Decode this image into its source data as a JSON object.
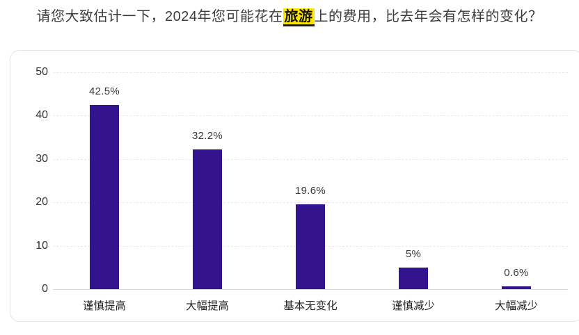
{
  "title": {
    "prefix": "请您大致估计一下，2024年您可能花在",
    "highlight": "旅游",
    "suffix": "上的费用，比去年会有怎样的变化？"
  },
  "chart_data": {
    "type": "bar",
    "categories": [
      "谨慎提高",
      "大幅提高",
      "基本无变化",
      "谨慎减少",
      "大幅减少"
    ],
    "values": [
      42.5,
      32.2,
      19.6,
      5,
      0.6
    ],
    "value_labels": [
      "42.5%",
      "32.2%",
      "19.6%",
      "5%",
      "0.6%"
    ],
    "yticks": [
      0,
      10,
      20,
      30,
      40,
      50
    ],
    "ylim": [
      0,
      50
    ],
    "title": "",
    "xlabel": "",
    "ylabel": "",
    "grid": "horizontal-dashed",
    "legend": "none",
    "bar_color": "#33148e"
  },
  "colors": {
    "bar": "#33148e",
    "highlight_bg": "#fbe400",
    "highlight_underline": "#1a1a1a",
    "title_text": "#3c3c3c",
    "axis_tick_text": "#333333",
    "value_label_text": "#3a3a3a",
    "category_label_text": "#262626",
    "card_border": "#e5e5e5",
    "gridline": "#e9e9e9",
    "baseline": "#d9d9d9",
    "background": "#ffffff"
  }
}
